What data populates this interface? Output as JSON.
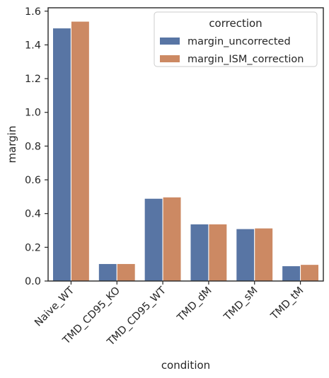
{
  "chart_data": {
    "type": "bar",
    "title": "",
    "xlabel": "condition",
    "ylabel": "margin",
    "ylim": [
      0,
      1.62
    ],
    "yticks": [
      "0.0",
      "0.2",
      "0.4",
      "0.6",
      "0.8",
      "1.0",
      "1.2",
      "1.4",
      "1.6"
    ],
    "ytick_values": [
      0.0,
      0.2,
      0.4,
      0.6,
      0.8,
      1.0,
      1.2,
      1.4,
      1.6
    ],
    "categories": [
      "Naive_WT",
      "TMD_CD95_KO",
      "TMD_CD95_WT",
      "TMD_dM",
      "TMD_sM",
      "TMD_tM"
    ],
    "series": [
      {
        "name": "margin_uncorrected",
        "color": "#5875a4",
        "values": [
          1.5,
          0.103,
          0.49,
          0.338,
          0.31,
          0.09
        ]
      },
      {
        "name": "margin_ISM_correction",
        "color": "#cc8963",
        "values": [
          1.54,
          0.103,
          0.498,
          0.338,
          0.314,
          0.098
        ]
      }
    ],
    "legend": {
      "title": "correction",
      "placement": "top-right"
    },
    "grid": false
  }
}
